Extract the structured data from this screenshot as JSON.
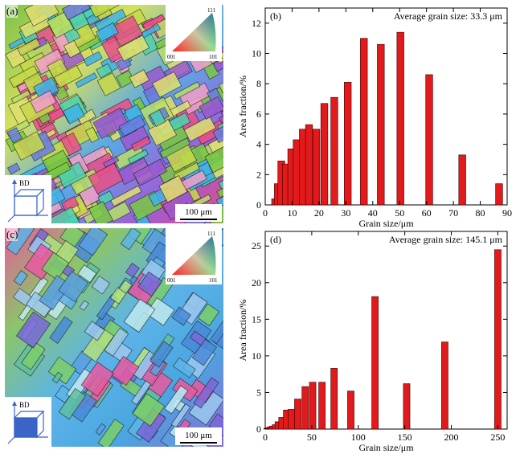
{
  "panels": {
    "a": {
      "label": "(a)",
      "triangle": {
        "top": "111",
        "left": "001",
        "right": "101"
      },
      "axis_label": "BD",
      "scale_bar": "100 μm"
    },
    "c": {
      "label": "(c)",
      "triangle": {
        "top": "111",
        "left": "001",
        "right": "101"
      },
      "axis_label": "BD",
      "scale_bar": "100 μm"
    }
  },
  "colors": {
    "bar": "#e31a1c",
    "bar_stroke": "#3a0000"
  },
  "chart_data": [
    {
      "type": "bar",
      "panel_label": "(b)",
      "annotation": "Average grain size: 33.3 μm",
      "xlabel": "Grain size/μm",
      "ylabel": "Area fraction/%",
      "xlim": [
        0,
        90
      ],
      "ylim": [
        0,
        13
      ],
      "xticks": [
        0,
        10,
        20,
        30,
        40,
        50,
        60,
        70,
        80,
        90
      ],
      "yticks": [
        0,
        2,
        4,
        6,
        8,
        10,
        12
      ],
      "x": [
        3.7,
        4.7,
        6.0,
        7.7,
        9.7,
        11.7,
        14.0,
        16.3,
        19.0,
        22.0,
        25.7,
        30.7,
        36.7,
        43.0,
        50.3,
        61.0,
        73.3,
        87.0
      ],
      "values": [
        0.4,
        1.4,
        2.9,
        2.7,
        3.7,
        4.3,
        5.0,
        5.3,
        5.0,
        6.7,
        7.1,
        8.1,
        11.0,
        10.6,
        11.4,
        8.6,
        3.3,
        1.4
      ],
      "bar_width": 2.6
    },
    {
      "type": "bar",
      "panel_label": "(d)",
      "annotation": "Average grain size: 145.1 μm",
      "xlabel": "Grain size/μm",
      "ylabel": "Area fraction/%",
      "xlim": [
        0,
        260
      ],
      "ylim": [
        0,
        27
      ],
      "xticks": [
        0,
        50,
        100,
        150,
        200,
        250
      ],
      "yticks": [
        0,
        5,
        10,
        15,
        20,
        25
      ],
      "x": [
        2,
        4,
        6,
        8,
        11,
        14,
        18,
        23,
        28,
        35,
        43,
        51,
        61,
        74,
        92,
        118,
        152,
        193,
        250
      ],
      "values": [
        0.1,
        0.2,
        0.3,
        0.4,
        0.6,
        1.0,
        1.6,
        2.6,
        2.7,
        4.1,
        5.8,
        6.4,
        6.4,
        8.3,
        5.2,
        18.1,
        6.2,
        11.9,
        24.5
      ],
      "bar_width": 7
    }
  ]
}
